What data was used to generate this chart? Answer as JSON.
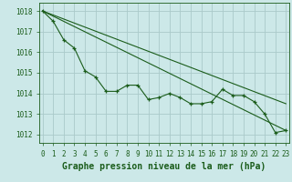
{
  "title": "Graphe pression niveau de la mer (hPa)",
  "background_color": "#cce8e8",
  "grid_color": "#aacaca",
  "line_color": "#1a5c1a",
  "xlim": [
    -0.3,
    23.3
  ],
  "ylim": [
    1011.6,
    1018.4
  ],
  "yticks": [
    1012,
    1013,
    1014,
    1015,
    1016,
    1017,
    1018
  ],
  "xticks": [
    0,
    1,
    2,
    3,
    4,
    5,
    6,
    7,
    8,
    9,
    10,
    11,
    12,
    13,
    14,
    15,
    16,
    17,
    18,
    19,
    20,
    21,
    22,
    23
  ],
  "series1_x": [
    0,
    1,
    2,
    3,
    4,
    5,
    6,
    7,
    8,
    9,
    10,
    11,
    12,
    13,
    14,
    15,
    16,
    17,
    18,
    19,
    20,
    21,
    22,
    23
  ],
  "series1_y": [
    1018.0,
    1017.5,
    1016.6,
    1016.2,
    1015.1,
    1014.8,
    1014.1,
    1014.1,
    1014.4,
    1014.4,
    1013.7,
    1013.8,
    1014.0,
    1013.8,
    1013.5,
    1013.5,
    1013.6,
    1014.2,
    1013.9,
    1013.9,
    1013.6,
    1013.0,
    1012.1,
    1012.2
  ],
  "trend1_x": [
    0,
    23
  ],
  "trend1_y": [
    1018.0,
    1012.2
  ],
  "trend2_x": [
    0,
    23
  ],
  "trend2_y": [
    1018.0,
    1013.5
  ],
  "tick_fontsize": 5.5,
  "label_fontsize": 7.0
}
